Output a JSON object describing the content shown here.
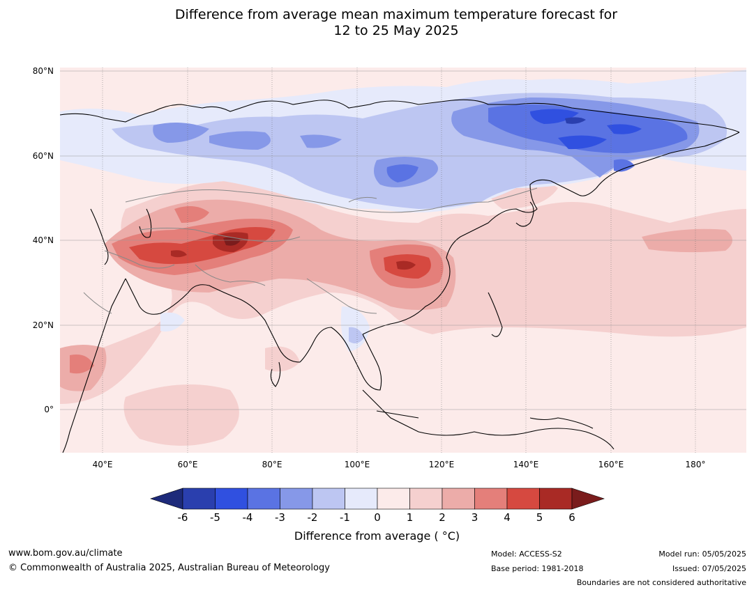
{
  "title_line1": "Difference from average mean maximum temperature forecast for",
  "title_line2": "12 to 25 May 2025",
  "map": {
    "lat_labels": [
      "80°N",
      "60°N",
      "40°N",
      "20°N",
      "0°"
    ],
    "lon_labels": [
      "40°E",
      "60°E",
      "80°E",
      "100°E",
      "120°E",
      "140°E",
      "160°E",
      "180°"
    ],
    "lon_range": [
      30,
      192
    ],
    "lat_range": [
      -10,
      81
    ]
  },
  "colorbar": {
    "ticks": [
      "-6",
      "-5",
      "-4",
      "-3",
      "-2",
      "-1",
      "0",
      "1",
      "2",
      "3",
      "4",
      "5",
      "6"
    ],
    "colors": [
      "#1d2a7a",
      "#2a3fae",
      "#3050e0",
      "#5a73e3",
      "#8698e8",
      "#bdc6f2",
      "#e6eafb",
      "#fcebea",
      "#f5d0cf",
      "#ecaca9",
      "#e47f7a",
      "#d64940",
      "#a92a25",
      "#7a1c1c"
    ],
    "label": "Difference from average ( °C)"
  },
  "footer": {
    "website": "www.bom.gov.au/climate",
    "copyright": "© Commonwealth of Australia 2025, Australian Bureau of Meteorology",
    "model": "Model: ACCESS-S2",
    "base_period": "Base period: 1981-2018",
    "model_run": "Model run: 05/05/2025",
    "issued": "Issued: 07/05/2025",
    "disclaimer": "Boundaries are not considered authoritative"
  }
}
